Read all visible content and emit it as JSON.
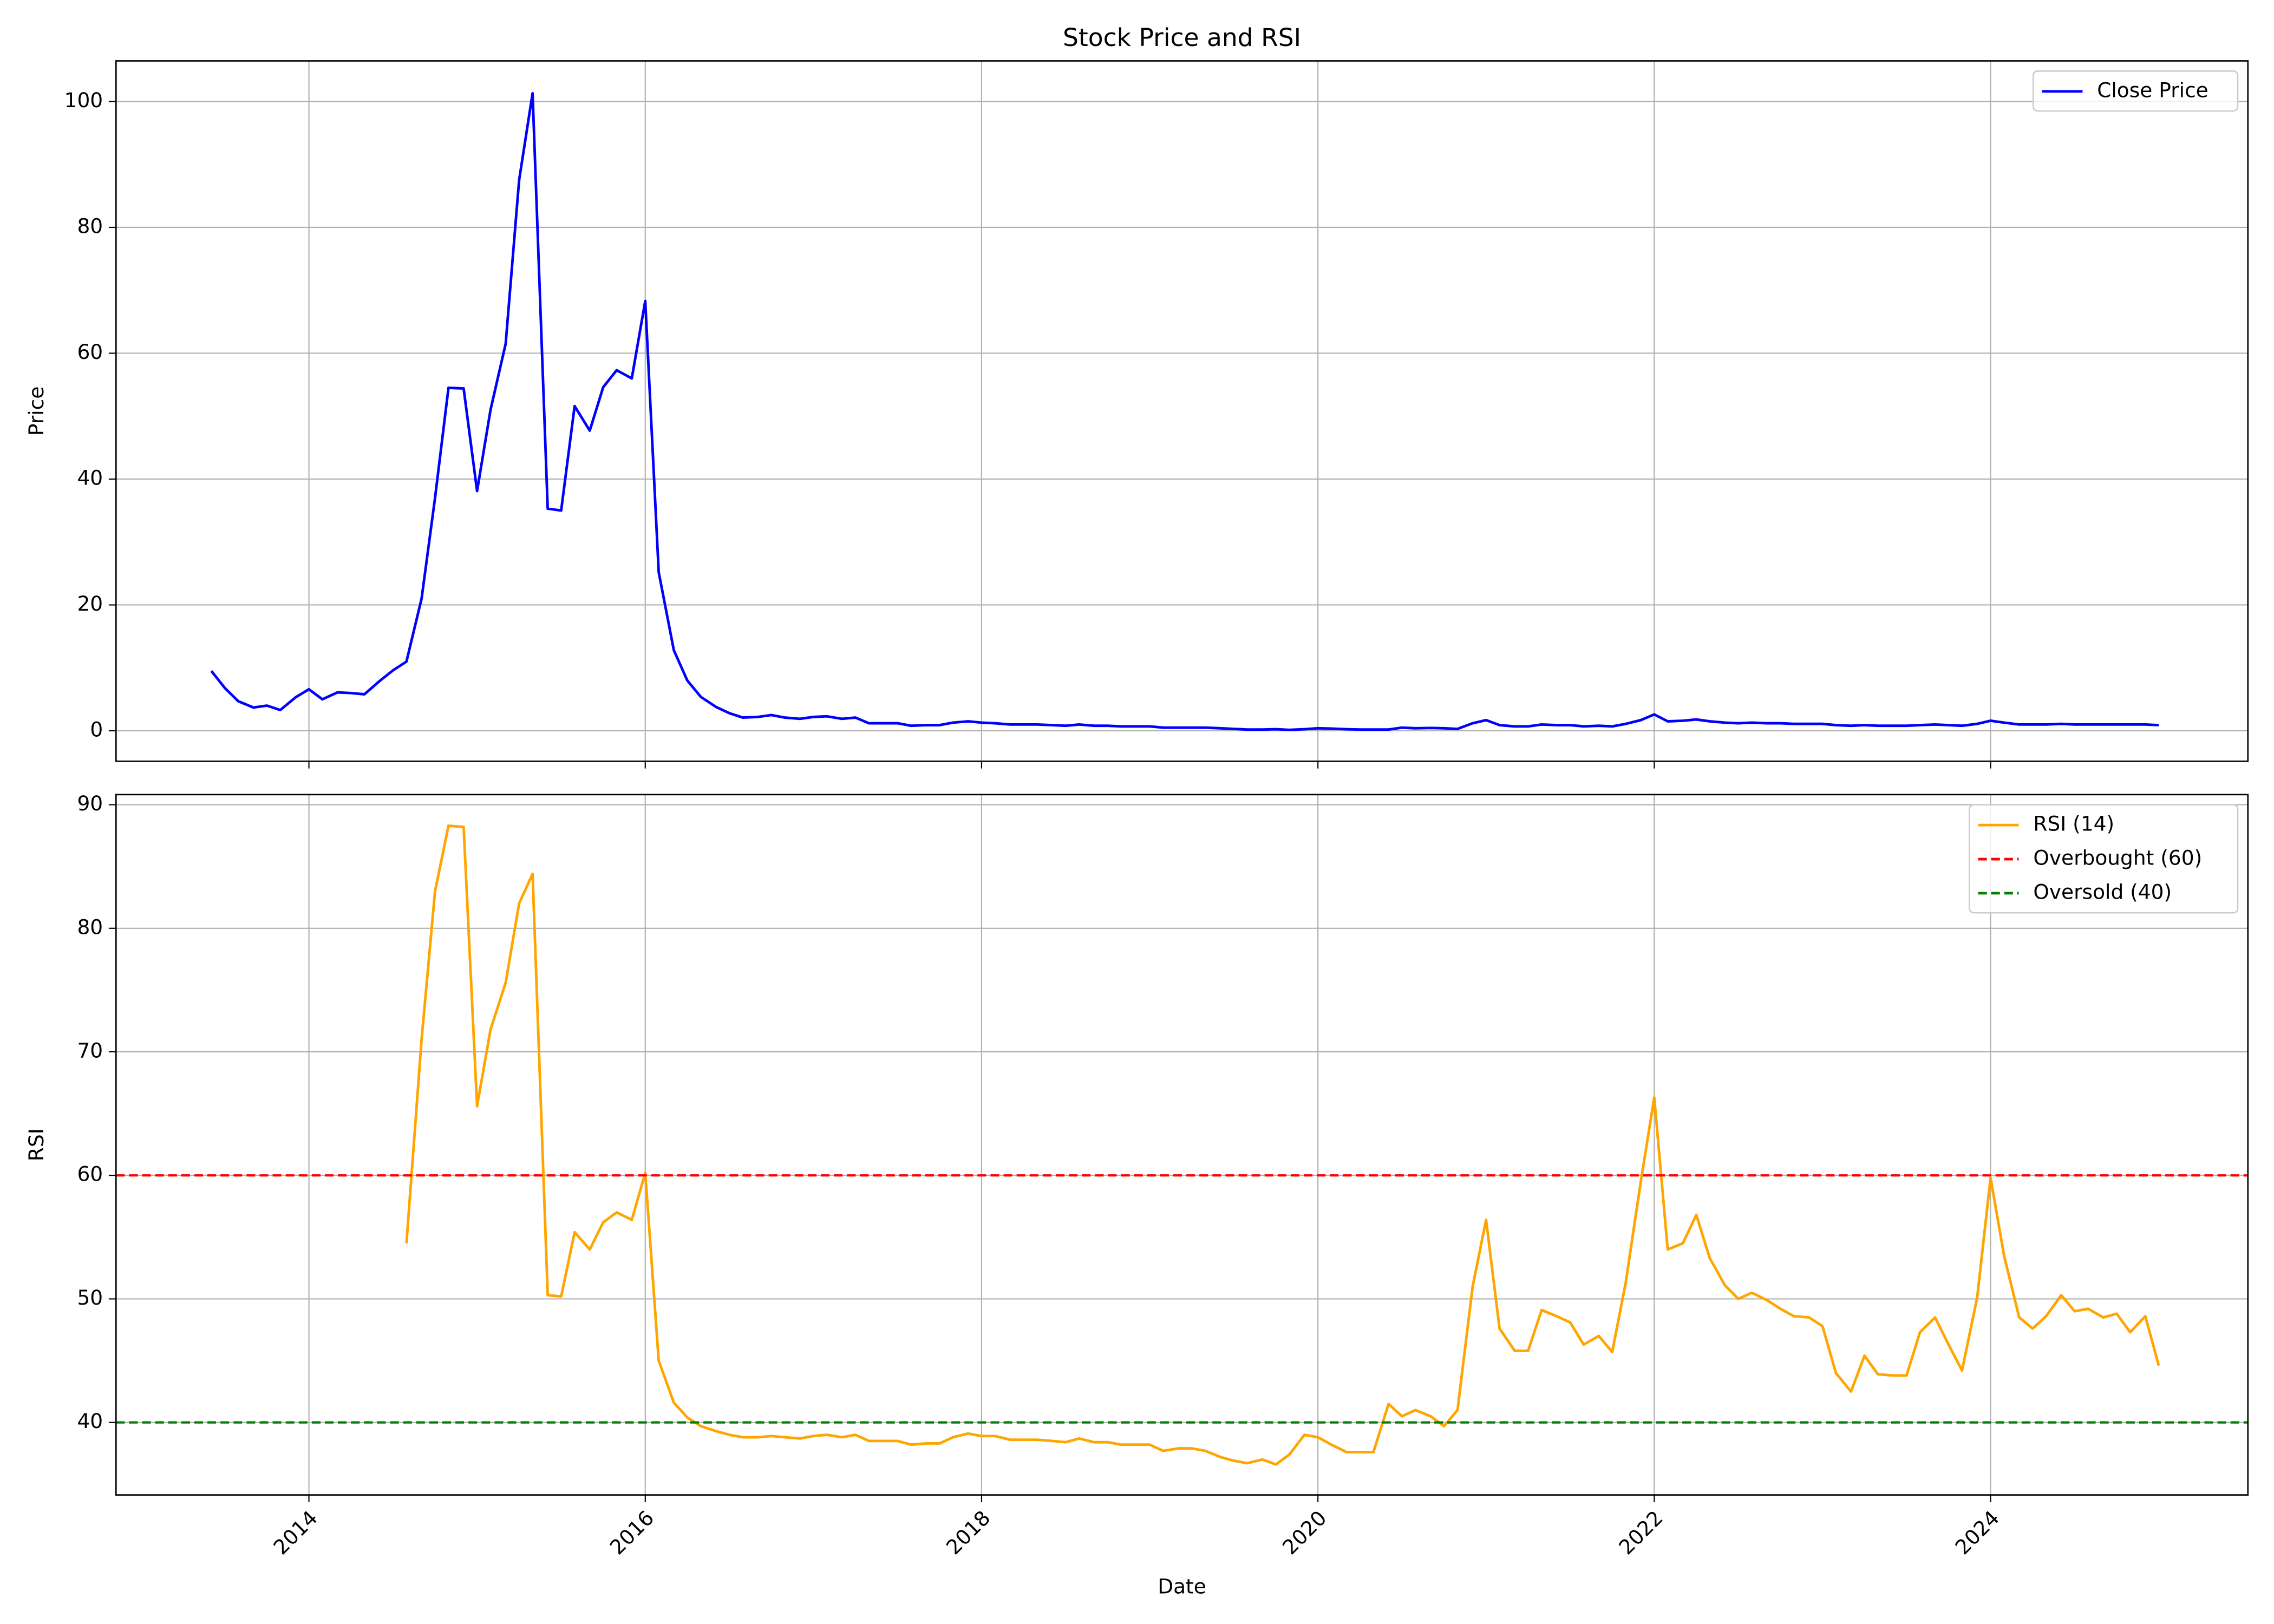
{
  "title": "Stock Price and RSI",
  "chart_data": [
    {
      "type": "line",
      "ylabel": "Price",
      "xlim": [
        2012.853,
        2025.53
      ],
      "xticks": [
        2014,
        2016,
        2018,
        2020,
        2022,
        2024
      ],
      "ylim": [
        -4.84,
        106.45
      ],
      "yticks": [
        0,
        20,
        40,
        60,
        80,
        100
      ],
      "grid": true,
      "legend": "upper right",
      "x": [
        2013.42,
        2013.5,
        2013.58,
        2013.67,
        2013.75,
        2013.83,
        2013.92,
        2014,
        2014.08,
        2014.17,
        2014.25,
        2014.33,
        2014.42,
        2014.5,
        2014.58,
        2014.67,
        2014.75,
        2014.83,
        2014.92,
        2015,
        2015.08,
        2015.17,
        2015.25,
        2015.33,
        2015.42,
        2015.5,
        2015.58,
        2015.67,
        2015.75,
        2015.83,
        2015.92,
        2016,
        2016.08,
        2016.17,
        2016.25,
        2016.33,
        2016.42,
        2016.5,
        2016.58,
        2016.67,
        2016.75,
        2016.83,
        2016.92,
        2017,
        2017.08,
        2017.17,
        2017.25,
        2017.33,
        2017.42,
        2017.5,
        2017.58,
        2017.67,
        2017.75,
        2017.83,
        2017.92,
        2018,
        2018.08,
        2018.17,
        2018.25,
        2018.33,
        2018.42,
        2018.5,
        2018.58,
        2018.67,
        2018.75,
        2018.83,
        2018.92,
        2019,
        2019.08,
        2019.17,
        2019.25,
        2019.33,
        2019.42,
        2019.5,
        2019.58,
        2019.67,
        2019.75,
        2019.83,
        2019.92,
        2020,
        2020.08,
        2020.17,
        2020.25,
        2020.33,
        2020.42,
        2020.5,
        2020.58,
        2020.67,
        2020.75,
        2020.83,
        2020.92,
        2021,
        2021.08,
        2021.17,
        2021.25,
        2021.33,
        2021.42,
        2021.5,
        2021.58,
        2021.67,
        2021.75,
        2021.83,
        2021.92,
        2022,
        2022.08,
        2022.17,
        2022.25,
        2022.33,
        2022.42,
        2022.5,
        2022.58,
        2022.67,
        2022.75,
        2022.83,
        2022.92,
        2023,
        2023.08,
        2023.17,
        2023.25,
        2023.33,
        2023.42,
        2023.5,
        2023.58,
        2023.67,
        2023.75,
        2023.83,
        2023.92,
        2024,
        2024.08,
        2024.17,
        2024.25,
        2024.33,
        2024.42,
        2024.5,
        2024.58,
        2024.67,
        2024.75,
        2024.83,
        2024.92,
        2025
      ],
      "series": [
        {
          "name": "Close Price",
          "color": "#0000ff",
          "values": [
            9.5,
            6.8,
            4.7,
            3.7,
            4.0,
            3.3,
            5.3,
            6.6,
            5.0,
            6.1,
            6.0,
            5.8,
            7.9,
            9.6,
            11.0,
            21,
            37,
            54.5,
            54.4,
            38.1,
            51,
            61.5,
            87.5,
            101.3,
            35.3,
            35.0,
            51.6,
            47.7,
            54.6,
            57.3,
            56.0,
            68.3,
            25.2,
            12.8,
            8.0,
            5.4,
            3.8,
            2.8,
            2.1,
            2.2,
            2.5,
            2.1,
            1.9,
            2.2,
            2.3,
            1.9,
            2.1,
            1.2,
            1.2,
            1.2,
            0.8,
            0.9,
            0.9,
            1.3,
            1.5,
            1.3,
            1.2,
            1.0,
            1.0,
            1.0,
            0.9,
            0.8,
            1.0,
            0.8,
            0.8,
            0.7,
            0.7,
            0.7,
            0.5,
            0.5,
            0.5,
            0.5,
            0.4,
            0.3,
            0.2,
            0.2,
            0.25,
            0.15,
            0.25,
            0.4,
            0.35,
            0.25,
            0.2,
            0.2,
            0.2,
            0.5,
            0.4,
            0.45,
            0.4,
            0.3,
            1.2,
            1.7,
            0.9,
            0.7,
            0.7,
            1.0,
            0.9,
            0.9,
            0.7,
            0.8,
            0.7,
            1.1,
            1.7,
            2.6,
            1.5,
            1.6,
            1.8,
            1.5,
            1.3,
            1.2,
            1.3,
            1.2,
            1.2,
            1.1,
            1.1,
            1.1,
            0.9,
            0.8,
            0.9,
            0.8,
            0.8,
            0.8,
            0.9,
            1.0,
            0.9,
            0.8,
            1.1,
            1.6,
            1.3,
            1.0,
            1.0,
            1.0,
            1.1,
            1.0,
            1.0,
            1.0,
            1.0,
            1.0,
            1.0,
            0.9
          ]
        }
      ]
    },
    {
      "type": "line",
      "ylabel": "RSI",
      "xlabel": "Date",
      "xlim": [
        2012.853,
        2025.53
      ],
      "xticks": [
        2014,
        2016,
        2018,
        2020,
        2022,
        2024
      ],
      "ylim": [
        34.13,
        90.82
      ],
      "yticks": [
        40,
        50,
        60,
        70,
        80,
        90
      ],
      "grid": true,
      "legend": "upper right",
      "x": [
        2013.42,
        2013.5,
        2013.58,
        2013.67,
        2013.75,
        2013.83,
        2013.92,
        2014,
        2014.08,
        2014.17,
        2014.25,
        2014.33,
        2014.42,
        2014.5,
        2014.58,
        2014.67,
        2014.75,
        2014.83,
        2014.92,
        2015,
        2015.08,
        2015.17,
        2015.25,
        2015.33,
        2015.42,
        2015.5,
        2015.58,
        2015.67,
        2015.75,
        2015.83,
        2015.92,
        2016,
        2016.08,
        2016.17,
        2016.25,
        2016.33,
        2016.42,
        2016.5,
        2016.58,
        2016.67,
        2016.75,
        2016.83,
        2016.92,
        2017,
        2017.08,
        2017.17,
        2017.25,
        2017.33,
        2017.42,
        2017.5,
        2017.58,
        2017.67,
        2017.75,
        2017.83,
        2017.92,
        2018,
        2018.08,
        2018.17,
        2018.25,
        2018.33,
        2018.42,
        2018.5,
        2018.58,
        2018.67,
        2018.75,
        2018.83,
        2018.92,
        2019,
        2019.08,
        2019.17,
        2019.25,
        2019.33,
        2019.42,
        2019.5,
        2019.58,
        2019.67,
        2019.75,
        2019.83,
        2019.92,
        2020,
        2020.08,
        2020.17,
        2020.25,
        2020.33,
        2020.42,
        2020.5,
        2020.58,
        2020.67,
        2020.75,
        2020.83,
        2020.92,
        2021,
        2021.08,
        2021.17,
        2021.25,
        2021.33,
        2021.42,
        2021.5,
        2021.58,
        2021.67,
        2021.75,
        2021.83,
        2021.92,
        2022,
        2022.08,
        2022.17,
        2022.25,
        2022.33,
        2022.42,
        2022.5,
        2022.58,
        2022.67,
        2022.75,
        2022.83,
        2022.92,
        2023,
        2023.08,
        2023.17,
        2023.25,
        2023.33,
        2023.42,
        2023.5,
        2023.58,
        2023.67,
        2023.75,
        2023.83,
        2023.92,
        2024,
        2024.08,
        2024.17,
        2024.25,
        2024.33,
        2024.42,
        2024.5,
        2024.58,
        2024.67,
        2024.75,
        2024.83,
        2024.92,
        2025
      ],
      "series": [
        {
          "name": "RSI (14)",
          "color": "#ffa500",
          "values": [
            null,
            null,
            null,
            null,
            null,
            null,
            null,
            null,
            null,
            null,
            null,
            null,
            null,
            null,
            54.5,
            71,
            83,
            88.3,
            88.2,
            65.6,
            71.8,
            75.6,
            82,
            84.4,
            50.3,
            50.2,
            55.4,
            54,
            56.2,
            57,
            56.4,
            60.2,
            45,
            41.6,
            40.4,
            39.7,
            39.3,
            39,
            38.8,
            38.8,
            38.9,
            38.8,
            38.7,
            38.9,
            39,
            38.8,
            39,
            38.5,
            38.5,
            38.5,
            38.2,
            38.3,
            38.3,
            38.8,
            39.1,
            38.9,
            38.9,
            38.6,
            38.6,
            38.6,
            38.5,
            38.4,
            38.7,
            38.4,
            38.4,
            38.2,
            38.2,
            38.2,
            37.7,
            37.9,
            37.9,
            37.7,
            37.2,
            36.9,
            36.7,
            37,
            36.6,
            37.4,
            39,
            38.8,
            38.2,
            37.6,
            37.6,
            37.6,
            41.5,
            40.5,
            41,
            40.5,
            39.7,
            41,
            51,
            56.4,
            47.6,
            45.8,
            45.8,
            49.1,
            48.6,
            48.1,
            46.3,
            47,
            45.7,
            51.3,
            59.5,
            66.3,
            54,
            54.5,
            56.8,
            53.3,
            51.1,
            50,
            50.5,
            49.9,
            49.2,
            48.6,
            48.5,
            47.8,
            44,
            42.5,
            45.4,
            43.9,
            43.8,
            43.8,
            47.3,
            48.5,
            46.3,
            44.2,
            50.1,
            59.8,
            53.5,
            48.5,
            47.6,
            48.6,
            50.3,
            49,
            49.2,
            48.5,
            48.8,
            47.3,
            48.6,
            44.6
          ]
        }
      ],
      "hlines": [
        {
          "name": "Overbought (60)",
          "color": "#ff0000",
          "value": 60,
          "style": "dashed"
        },
        {
          "name": "Oversold (40)",
          "color": "#008000",
          "value": 40,
          "style": "dashed"
        }
      ]
    }
  ]
}
